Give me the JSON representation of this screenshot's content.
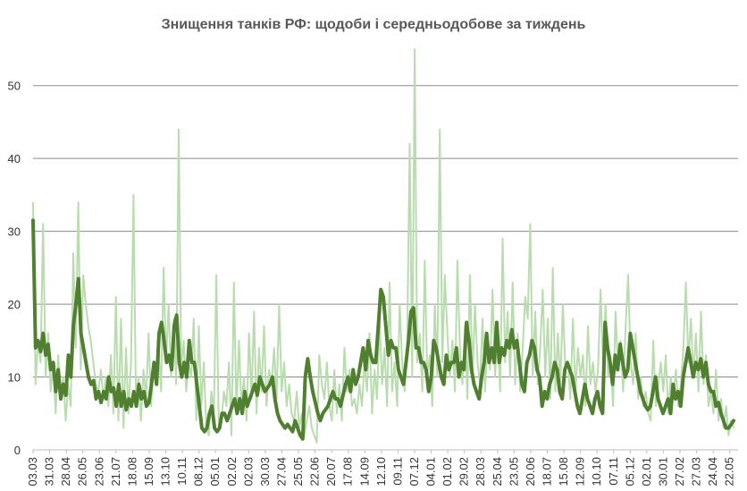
{
  "chart_data": {
    "type": "line",
    "title": "Знищення танків РФ: щодоби і середньодобове за тиждень",
    "xlabel": "",
    "ylabel": "",
    "ylim": [
      0,
      55
    ],
    "yticks": [
      0,
      10,
      20,
      30,
      40,
      50
    ],
    "grid": true,
    "x_tick_labels": [
      "03.03",
      "31.03",
      "28.04",
      "26.05",
      "23.06",
      "21.07",
      "18.08",
      "15.09",
      "13.10",
      "10.11",
      "08.12",
      "05.01",
      "02.02",
      "02.03",
      "30.03",
      "27.04",
      "25.05",
      "22.06",
      "20.07",
      "17.08",
      "14.09",
      "12.10",
      "09.11",
      "07.12",
      "04.01",
      "01.02",
      "29.02",
      "28.03",
      "25.04",
      "23.05",
      "20.06",
      "18.07",
      "15.08",
      "12.09",
      "10.10",
      "07.11",
      "05.12",
      "02.01",
      "30.01",
      "27.02",
      "27.03",
      "24.04",
      "22.05"
    ],
    "series": [
      {
        "kind": "daily",
        "color": "#b9dcae",
        "values": [
          34,
          9,
          15,
          12,
          31,
          10,
          16,
          8,
          12,
          5,
          13,
          7,
          10,
          4,
          9,
          6,
          27,
          14,
          34,
          11,
          24,
          20,
          17,
          15,
          12,
          9,
          8,
          11,
          7,
          10,
          6,
          13,
          5,
          21,
          4,
          18,
          3,
          14,
          5,
          12,
          35,
          6,
          10,
          4,
          11,
          7,
          16,
          6,
          12,
          9,
          14,
          8,
          25,
          12,
          20,
          10,
          18,
          9,
          44,
          11,
          15,
          8,
          12,
          10,
          18,
          4,
          17,
          6,
          12,
          3,
          2,
          8,
          5,
          24,
          3,
          4,
          8,
          6,
          12,
          2,
          23,
          5,
          15,
          6,
          10,
          4,
          16,
          7,
          19,
          5,
          14,
          8,
          17,
          6,
          11,
          9,
          14,
          7,
          20,
          8,
          12,
          6,
          9,
          5,
          4,
          8,
          3,
          5,
          2,
          4,
          6,
          3,
          2,
          1,
          13,
          9,
          7,
          12,
          6,
          4,
          11,
          5,
          9,
          4,
          14,
          8,
          11,
          6,
          7,
          5,
          9,
          6,
          12,
          8,
          16,
          5,
          11,
          7,
          18,
          9,
          14,
          6,
          23,
          8,
          12,
          6,
          20,
          12,
          8,
          15,
          42,
          10,
          55,
          12,
          16,
          8,
          26,
          10,
          13,
          6,
          20,
          10,
          44,
          12,
          24,
          16,
          10,
          15,
          8,
          26,
          14,
          9,
          17,
          7,
          24,
          10,
          20,
          12,
          9,
          18,
          8,
          15,
          11,
          22,
          10,
          17,
          8,
          29,
          12,
          19,
          10,
          23,
          9,
          16,
          8,
          14,
          21,
          18,
          31,
          10,
          19,
          9,
          14,
          22,
          10,
          18,
          7,
          25,
          8,
          16,
          9,
          20,
          11,
          12,
          7,
          18,
          8,
          14,
          10,
          13,
          6,
          17,
          9,
          12,
          8,
          11,
          22,
          12,
          20,
          10,
          13,
          6,
          19,
          11,
          15,
          8,
          17,
          24,
          12,
          9,
          16,
          7,
          10,
          6,
          8,
          5,
          4,
          15,
          6,
          9,
          12,
          8,
          13,
          5,
          10,
          7,
          11,
          6,
          9,
          14,
          23,
          12,
          18,
          10,
          16,
          8,
          19,
          9,
          13,
          6,
          8,
          5,
          11,
          4,
          7,
          3,
          6,
          2,
          4,
          3
        ]
      },
      {
        "kind": "weekly_average",
        "color": "#4f7f2f",
        "values": [
          31.5,
          14,
          15,
          13.5,
          16,
          13,
          14.5,
          11,
          12,
          8,
          11,
          7,
          9,
          7.5,
          13,
          10,
          17,
          20,
          23.5,
          16,
          14,
          12,
          10,
          9,
          9.5,
          7,
          8,
          6.5,
          8,
          7,
          10,
          8,
          8.5,
          6,
          9,
          6,
          8,
          5.5,
          7,
          6,
          8,
          6,
          9,
          7,
          8,
          6,
          6.5,
          9,
          12,
          9,
          16,
          17.5,
          15,
          12,
          13,
          11,
          17,
          18.5,
          12,
          10,
          12,
          10,
          15,
          12,
          12,
          9,
          6,
          3,
          2.5,
          3,
          5,
          6,
          3,
          2.5,
          3,
          5,
          5,
          4,
          5,
          6,
          7,
          5,
          7,
          5,
          8,
          6,
          7,
          8,
          9,
          7.5,
          10,
          9,
          8,
          8.5,
          9,
          10,
          7,
          5,
          4,
          3.5,
          3,
          3.5,
          3,
          2.5,
          4,
          3,
          2,
          1.5,
          10,
          12.5,
          10,
          8,
          6.5,
          5,
          4,
          5,
          5.5,
          6,
          7,
          8,
          7,
          7,
          6,
          7.5,
          9,
          10,
          8,
          11,
          9,
          10,
          12,
          14,
          11,
          15,
          13,
          12,
          12,
          17,
          22,
          21,
          17,
          13,
          15,
          14,
          14,
          11,
          10,
          9,
          12,
          15,
          19,
          19.5,
          14,
          14,
          12,
          12,
          11,
          8,
          10,
          15,
          14,
          12,
          10,
          9,
          13,
          11,
          12,
          12,
          14,
          10,
          12,
          11,
          17.5,
          15,
          11,
          9,
          8,
          7,
          10,
          12,
          16,
          12,
          14,
          12,
          17.5,
          12,
          14,
          13,
          15,
          14,
          16.5,
          14,
          15,
          12,
          9,
          8,
          12,
          13,
          15,
          14,
          11,
          10,
          6,
          8,
          7,
          9,
          10,
          12,
          11,
          8,
          7,
          11,
          12,
          11,
          10,
          8,
          6,
          5,
          7,
          9,
          7,
          6,
          5,
          7,
          8,
          6,
          5,
          17.5,
          14,
          12,
          9,
          13,
          11,
          14.5,
          12,
          10,
          11,
          16,
          14,
          12,
          10,
          8,
          7,
          6,
          5.5,
          6,
          8,
          10,
          7,
          6,
          5,
          6,
          7,
          5,
          9,
          7,
          8,
          6,
          10,
          12,
          14,
          12,
          10,
          12,
          11,
          12.5,
          10,
          12,
          9,
          8,
          8,
          6,
          6.5,
          5,
          4,
          3,
          3,
          3.5,
          4
        ]
      }
    ]
  }
}
